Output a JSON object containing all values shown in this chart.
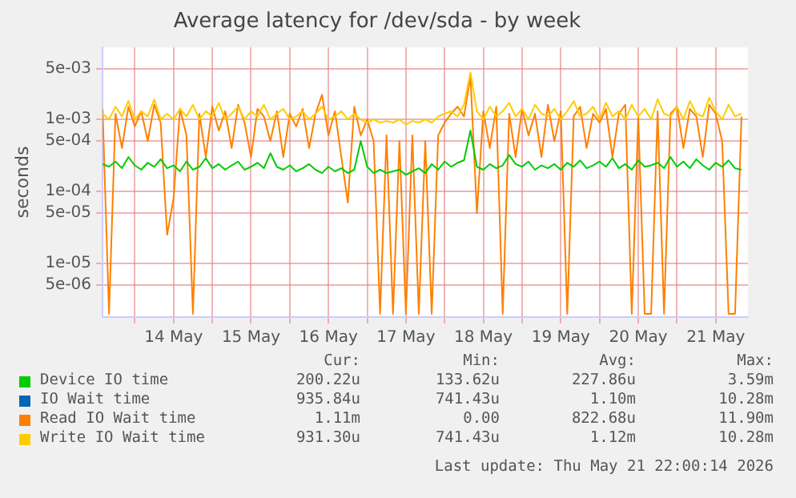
{
  "chart_data": {
    "type": "line",
    "title": "Average latency for /dev/sda - by week",
    "ylabel": "seconds",
    "log": "y",
    "grid": true,
    "legend": "bottom",
    "marker": "none",
    "line_style": "solid",
    "x": [
      "2026-05-13T14:00",
      "2026-05-13T16:00",
      "2026-05-13T18:00",
      "2026-05-13T20:00",
      "2026-05-13T22:00",
      "2026-05-14T00:00",
      "2026-05-14T02:00",
      "2026-05-14T04:00",
      "2026-05-14T06:00",
      "2026-05-14T08:00",
      "2026-05-14T10:00",
      "2026-05-14T12:00",
      "2026-05-14T14:00",
      "2026-05-14T16:00",
      "2026-05-14T18:00",
      "2026-05-14T20:00",
      "2026-05-14T22:00",
      "2026-05-15T00:00",
      "2026-05-15T02:00",
      "2026-05-15T04:00",
      "2026-05-15T06:00",
      "2026-05-15T08:00",
      "2026-05-15T10:00",
      "2026-05-15T12:00",
      "2026-05-15T14:00",
      "2026-05-15T16:00",
      "2026-05-15T18:00",
      "2026-05-15T20:00",
      "2026-05-15T22:00",
      "2026-05-16T00:00",
      "2026-05-16T02:00",
      "2026-05-16T04:00",
      "2026-05-16T06:00",
      "2026-05-16T08:00",
      "2026-05-16T10:00",
      "2026-05-16T12:00",
      "2026-05-16T14:00",
      "2026-05-16T16:00",
      "2026-05-16T18:00",
      "2026-05-16T20:00",
      "2026-05-16T22:00",
      "2026-05-17T00:00",
      "2026-05-17T02:00",
      "2026-05-17T04:00",
      "2026-05-17T06:00",
      "2026-05-17T08:00",
      "2026-05-17T10:00",
      "2026-05-17T12:00",
      "2026-05-17T14:00",
      "2026-05-17T16:00",
      "2026-05-17T18:00",
      "2026-05-17T20:00",
      "2026-05-17T22:00",
      "2026-05-18T00:00",
      "2026-05-18T02:00",
      "2026-05-18T04:00",
      "2026-05-18T06:00",
      "2026-05-18T08:00",
      "2026-05-18T10:00",
      "2026-05-18T12:00",
      "2026-05-18T14:00",
      "2026-05-18T16:00",
      "2026-05-18T18:00",
      "2026-05-18T20:00",
      "2026-05-18T22:00",
      "2026-05-19T00:00",
      "2026-05-19T02:00",
      "2026-05-19T04:00",
      "2026-05-19T06:00",
      "2026-05-19T08:00",
      "2026-05-19T10:00",
      "2026-05-19T12:00",
      "2026-05-19T14:00",
      "2026-05-19T16:00",
      "2026-05-19T18:00",
      "2026-05-19T20:00",
      "2026-05-19T22:00",
      "2026-05-20T00:00",
      "2026-05-20T02:00",
      "2026-05-20T04:00",
      "2026-05-20T06:00",
      "2026-05-20T08:00",
      "2026-05-20T10:00",
      "2026-05-20T12:00",
      "2026-05-20T14:00",
      "2026-05-20T16:00",
      "2026-05-20T18:00",
      "2026-05-20T20:00",
      "2026-05-20T22:00",
      "2026-05-21T00:00",
      "2026-05-21T02:00",
      "2026-05-21T04:00",
      "2026-05-21T06:00",
      "2026-05-21T08:00",
      "2026-05-21T10:00",
      "2026-05-21T12:00",
      "2026-05-21T14:00",
      "2026-05-21T16:00",
      "2026-05-21T18:00",
      "2026-05-21T20:00"
    ],
    "xlim": [
      "2026-05-13T14:00",
      "2026-05-21T22:00"
    ],
    "xticks": [
      {
        "value": "2026-05-14T00:00",
        "label": null
      },
      {
        "value": "2026-05-14T12:00",
        "label": "14 May"
      },
      {
        "value": "2026-05-15T00:00",
        "label": null
      },
      {
        "value": "2026-05-15T12:00",
        "label": "15 May"
      },
      {
        "value": "2026-05-16T00:00",
        "label": null
      },
      {
        "value": "2026-05-16T12:00",
        "label": "16 May"
      },
      {
        "value": "2026-05-17T00:00",
        "label": null
      },
      {
        "value": "2026-05-17T12:00",
        "label": "17 May"
      },
      {
        "value": "2026-05-18T00:00",
        "label": null
      },
      {
        "value": "2026-05-18T12:00",
        "label": "18 May"
      },
      {
        "value": "2026-05-19T00:00",
        "label": null
      },
      {
        "value": "2026-05-19T12:00",
        "label": "19 May"
      },
      {
        "value": "2026-05-20T00:00",
        "label": null
      },
      {
        "value": "2026-05-20T12:00",
        "label": "20 May"
      },
      {
        "value": "2026-05-21T00:00",
        "label": null
      },
      {
        "value": "2026-05-21T12:00",
        "label": "21 May"
      }
    ],
    "ylim": [
      1.8e-06,
      0.01
    ],
    "yticks": [
      {
        "value": 5e-06,
        "label": "5e-06"
      },
      {
        "value": 1e-05,
        "label": "1e-05"
      },
      {
        "value": 5e-05,
        "label": "5e-05"
      },
      {
        "value": 0.0001,
        "label": "1e-04"
      },
      {
        "value": 0.0005,
        "label": "5e-04"
      },
      {
        "value": 0.001,
        "label": "1e-03"
      },
      {
        "value": 0.005,
        "label": "5e-03"
      }
    ],
    "series": [
      {
        "name": "Device IO time",
        "color": "#00cc00",
        "values": [
          0.00024,
          0.00022,
          0.00026,
          0.00021,
          0.0003,
          0.00023,
          0.0002,
          0.00025,
          0.00022,
          0.00028,
          0.00021,
          0.00023,
          0.00019,
          0.00026,
          0.0002,
          0.00022,
          0.00029,
          0.00021,
          0.00024,
          0.0002,
          0.00023,
          0.00026,
          0.0002,
          0.00022,
          0.00025,
          0.00021,
          0.00034,
          0.00022,
          0.0002,
          0.00023,
          0.00019,
          0.00021,
          0.00024,
          0.0002,
          0.00018,
          0.00022,
          0.00019,
          0.00021,
          0.00018,
          0.0002,
          0.0005,
          0.00022,
          0.00018,
          0.0002,
          0.00018,
          0.00019,
          0.0002,
          0.00017,
          0.00019,
          0.00021,
          0.00018,
          0.00024,
          0.0002,
          0.00026,
          0.00022,
          0.00025,
          0.00027,
          0.0007,
          0.00022,
          0.0002,
          0.00024,
          0.00021,
          0.00023,
          0.00032,
          0.00024,
          0.00022,
          0.00026,
          0.0002,
          0.00023,
          0.00021,
          0.00024,
          0.0002,
          0.00025,
          0.00022,
          0.00027,
          0.00021,
          0.00023,
          0.00026,
          0.00022,
          0.00029,
          0.00021,
          0.00024,
          0.0002,
          0.00027,
          0.00022,
          0.00023,
          0.00025,
          0.00021,
          0.0003,
          0.00022,
          0.00026,
          0.00021,
          0.00028,
          0.00023,
          0.0002,
          0.00025,
          0.00022,
          0.00027,
          0.00021,
          0.0002
        ]
      },
      {
        "name": "IO Wait time",
        "color": "#0066b3",
        "values": [
          null,
          null,
          null,
          null,
          null,
          null,
          null,
          null,
          null,
          null,
          null,
          null,
          null,
          null,
          null,
          null,
          null,
          null,
          null,
          null,
          null,
          null,
          null,
          null,
          null,
          null,
          null,
          null,
          null,
          null,
          null,
          null,
          null,
          null,
          null,
          null,
          null,
          null,
          null,
          null,
          null,
          null,
          null,
          null,
          null,
          null,
          null,
          null,
          null,
          null,
          null,
          null,
          null,
          null,
          null,
          null,
          null,
          null,
          null,
          null,
          null,
          null,
          null,
          null,
          null,
          null,
          null,
          null,
          null,
          null,
          null,
          null,
          null,
          null,
          null,
          null,
          null,
          null,
          null,
          null,
          null,
          null,
          null,
          null,
          null,
          null,
          null,
          null,
          null,
          null,
          null,
          null,
          null,
          null,
          null,
          null,
          null,
          null,
          null,
          null
        ]
      },
      {
        "name": "Read IO Wait time",
        "color": "#ff8000",
        "values": [
          0.0014,
          2e-06,
          0.0012,
          0.0004,
          0.0015,
          0.0008,
          0.0013,
          0.0005,
          0.0016,
          0.0009,
          2.5e-05,
          8e-05,
          0.0014,
          0.0006,
          2e-06,
          0.0012,
          0.0003,
          0.0015,
          0.0007,
          0.0013,
          0.0004,
          0.0016,
          0.0009,
          0.0003,
          0.0014,
          0.0011,
          0.0005,
          0.0013,
          0.0003,
          0.0012,
          0.0008,
          0.0014,
          0.0004,
          0.0012,
          0.0022,
          0.0006,
          0.0013,
          0.0003,
          7e-05,
          0.0015,
          0.0006,
          0.001,
          0.0005,
          2e-06,
          0.0006,
          2e-06,
          0.0005,
          2e-06,
          0.0006,
          2e-06,
          0.0005,
          2e-06,
          0.0006,
          0.0009,
          0.0012,
          0.0015,
          0.0011,
          0.004,
          5e-05,
          0.0013,
          0.0004,
          0.0015,
          2e-06,
          0.0012,
          0.0003,
          0.0014,
          0.0006,
          0.0012,
          0.0003,
          0.0016,
          0.0005,
          0.0013,
          2e-06,
          0.0011,
          0.0015,
          0.0004,
          0.0012,
          0.0009,
          0.0014,
          0.0003,
          0.0012,
          0.0016,
          2e-06,
          0.0011,
          2e-06,
          2e-06,
          0.0013,
          2e-06,
          0.0012,
          0.0015,
          0.0004,
          0.0014,
          0.0011,
          0.0003,
          0.0016,
          0.0012,
          0.0005,
          2e-06,
          2e-06,
          0.0011
        ]
      },
      {
        "name": "Write IO Wait time",
        "color": "#ffcc00",
        "values": [
          0.0012,
          0.001,
          0.0015,
          0.0011,
          0.0018,
          0.001,
          0.0013,
          0.0011,
          0.0019,
          0.001,
          0.0012,
          0.001,
          0.0014,
          0.0011,
          0.0016,
          0.001,
          0.0013,
          0.0011,
          0.0017,
          0.001,
          0.0012,
          0.0015,
          0.001,
          0.0013,
          0.0011,
          0.0016,
          0.001,
          0.0012,
          0.0014,
          0.001,
          0.0011,
          0.0013,
          0.001,
          0.0012,
          0.0015,
          0.001,
          0.0011,
          0.0013,
          0.001,
          0.0012,
          0.001,
          0.0009,
          0.001,
          0.0009,
          0.00095,
          0.0009,
          0.001,
          0.00085,
          0.00095,
          0.0009,
          0.001,
          0.0009,
          0.0011,
          0.0012,
          0.0013,
          0.0011,
          0.0016,
          0.0045,
          0.0013,
          0.001,
          0.0015,
          0.0011,
          0.0013,
          0.0017,
          0.0011,
          0.0014,
          0.001,
          0.0016,
          0.0012,
          0.0011,
          0.0014,
          0.001,
          0.0013,
          0.0018,
          0.0011,
          0.0012,
          0.0015,
          0.001,
          0.0017,
          0.0011,
          0.0013,
          0.001,
          0.0016,
          0.0011,
          0.0014,
          0.001,
          0.0019,
          0.0012,
          0.0011,
          0.0015,
          0.001,
          0.0018,
          0.0012,
          0.0011,
          0.002,
          0.0013,
          0.001,
          0.0016,
          0.0011,
          0.0012
        ]
      }
    ],
    "annotations": [
      "Cur:",
      "Min:",
      "Avg:",
      "Max:",
      "200.22u",
      "133.62u",
      "227.86u",
      "3.59m",
      "935.84u",
      "741.43u",
      "1.10m",
      "10.28m",
      "1.11m",
      "0.00",
      "822.68u",
      "11.90m",
      "931.30u",
      "741.43u",
      "1.12m",
      "10.28m",
      "Last update: Thu May 21 22:00:14 2026"
    ]
  }
}
